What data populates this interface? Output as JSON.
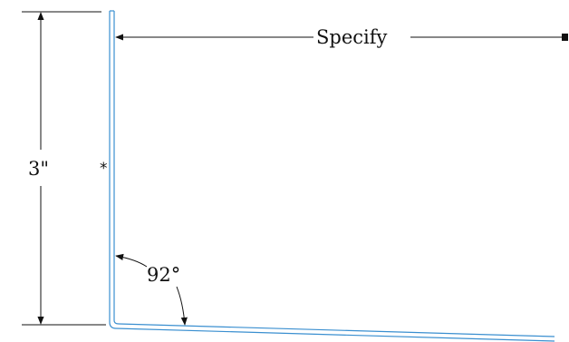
{
  "drawing": {
    "height_dimension": "3\"",
    "width_dimension": "Specify",
    "angle_dimension": "92°",
    "hem_marker": "*"
  },
  "colors": {
    "part_outline": "#3a8fd0",
    "dimension_lines": "#111111"
  }
}
